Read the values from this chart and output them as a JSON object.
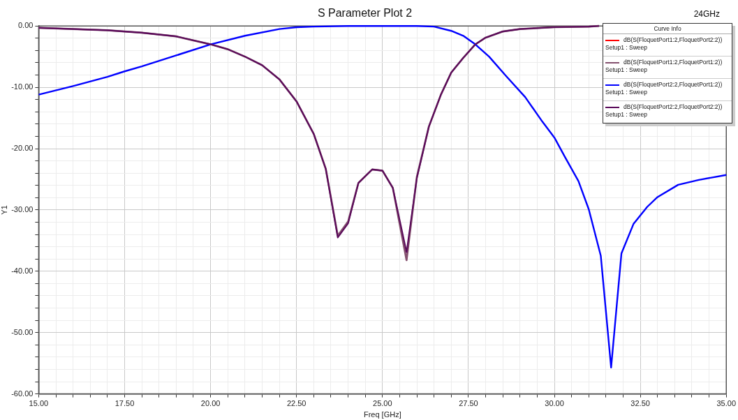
{
  "chart_data": {
    "type": "line",
    "title": "S Parameter Plot 2",
    "xlabel": "Freq [GHz]",
    "ylabel": "Y1",
    "legend_title": "Curve Info",
    "annotations": [
      "24GHz"
    ],
    "xlim": [
      15,
      35
    ],
    "ylim": [
      -60,
      0
    ],
    "xticks": [
      {
        "value": 15,
        "label": "15.00"
      },
      {
        "value": 15.5,
        "label": null
      },
      {
        "value": 16,
        "label": null
      },
      {
        "value": 16.5,
        "label": null
      },
      {
        "value": 17,
        "label": null
      },
      {
        "value": 17.5,
        "label": "17.50"
      },
      {
        "value": 18,
        "label": null
      },
      {
        "value": 18.5,
        "label": null
      },
      {
        "value": 19,
        "label": null
      },
      {
        "value": 19.5,
        "label": null
      },
      {
        "value": 20,
        "label": "20.00"
      },
      {
        "value": 20.5,
        "label": null
      },
      {
        "value": 21,
        "label": null
      },
      {
        "value": 21.5,
        "label": null
      },
      {
        "value": 22,
        "label": null
      },
      {
        "value": 22.5,
        "label": "22.50"
      },
      {
        "value": 23,
        "label": null
      },
      {
        "value": 23.5,
        "label": null
      },
      {
        "value": 24,
        "label": null
      },
      {
        "value": 24.5,
        "label": null
      },
      {
        "value": 25,
        "label": "25.00"
      },
      {
        "value": 25.5,
        "label": null
      },
      {
        "value": 26,
        "label": null
      },
      {
        "value": 26.5,
        "label": null
      },
      {
        "value": 27,
        "label": null
      },
      {
        "value": 27.5,
        "label": "27.50"
      },
      {
        "value": 28,
        "label": null
      },
      {
        "value": 28.5,
        "label": null
      },
      {
        "value": 29,
        "label": null
      },
      {
        "value": 29.5,
        "label": null
      },
      {
        "value": 30,
        "label": "30.00"
      },
      {
        "value": 30.5,
        "label": null
      },
      {
        "value": 31,
        "label": null
      },
      {
        "value": 31.5,
        "label": null
      },
      {
        "value": 32,
        "label": null
      },
      {
        "value": 32.5,
        "label": "32.50"
      },
      {
        "value": 33,
        "label": null
      },
      {
        "value": 33.5,
        "label": null
      },
      {
        "value": 34,
        "label": null
      },
      {
        "value": 34.5,
        "label": null
      },
      {
        "value": 35,
        "label": "35.00"
      }
    ],
    "yticks": [
      {
        "value": -60,
        "label": "-60.00"
      },
      {
        "value": -58,
        "label": null
      },
      {
        "value": -56,
        "label": null
      },
      {
        "value": -54,
        "label": null
      },
      {
        "value": -52,
        "label": null
      },
      {
        "value": -50,
        "label": "-50.00"
      },
      {
        "value": -48,
        "label": null
      },
      {
        "value": -46,
        "label": null
      },
      {
        "value": -44,
        "label": null
      },
      {
        "value": -42,
        "label": null
      },
      {
        "value": -40,
        "label": "-40.00"
      },
      {
        "value": -38,
        "label": null
      },
      {
        "value": -36,
        "label": null
      },
      {
        "value": -34,
        "label": null
      },
      {
        "value": -32,
        "label": null
      },
      {
        "value": -30,
        "label": "-30.00"
      },
      {
        "value": -28,
        "label": null
      },
      {
        "value": -26,
        "label": null
      },
      {
        "value": -24,
        "label": null
      },
      {
        "value": -22,
        "label": null
      },
      {
        "value": -20,
        "label": "-20.00"
      },
      {
        "value": -18,
        "label": null
      },
      {
        "value": -16,
        "label": null
      },
      {
        "value": -14,
        "label": null
      },
      {
        "value": -12,
        "label": null
      },
      {
        "value": -10,
        "label": "-10.00"
      },
      {
        "value": -8,
        "label": null
      },
      {
        "value": -6,
        "label": null
      },
      {
        "value": -4,
        "label": null
      },
      {
        "value": -2,
        "label": null
      },
      {
        "value": 0,
        "label": "0.00"
      }
    ],
    "grid": true,
    "legend": "top right",
    "marker": "none",
    "line_style": "solid",
    "series": [
      {
        "name": "dB(S(FloquetPort1:2,FloquetPort2:2))\nSetup1 : Sweep",
        "color": "#ff0000"
      },
      {
        "name": "dB(S(FloquetPort1:2,FloquetPort1:2))\nSetup1 : Sweep",
        "color": "#84506e",
        "x": [
          15,
          16,
          17,
          17.5,
          18,
          19,
          20,
          20.5,
          21,
          21.5,
          22,
          22.5,
          23,
          23.35,
          23.7,
          24,
          24.3,
          24.7,
          25,
          25.3,
          25.7,
          26,
          26.35,
          26.7,
          27,
          27.35,
          27.7,
          28,
          28.5,
          29,
          30,
          31,
          31.3
        ],
        "values": [
          -0.3,
          -0.5,
          -0.7,
          -0.9,
          -1.1,
          -1.7,
          -3.0,
          -3.8,
          -5.0,
          -6.4,
          -8.7,
          -12.3,
          -17.6,
          -23.3,
          -34.2,
          -31.9,
          -25.6,
          -23.4,
          -23.6,
          -26.4,
          -38.2,
          -24.6,
          -16.4,
          -11.2,
          -7.6,
          -5.2,
          -3.0,
          -1.9,
          -0.9,
          -0.5,
          -0.2,
          -0.1,
          0
        ]
      },
      {
        "name": "dB(S(FloquetPort2:2,FloquetPort1:2))\nSetup1 : Sweep",
        "color": "#0000ff",
        "x": [
          15,
          16,
          17,
          17.5,
          18,
          19,
          20,
          21,
          22,
          22.5,
          23,
          24,
          25,
          26,
          26.5,
          27,
          27.35,
          27.7,
          28.1,
          28.6,
          29.15,
          29.65,
          30,
          30.3,
          30.7,
          31,
          31.35,
          31.65,
          31.95,
          32.3,
          32.7,
          33,
          33.6,
          34.2,
          35
        ],
        "values": [
          -11.2,
          -9.8,
          -8.3,
          -7.4,
          -6.6,
          -4.8,
          -3.0,
          -1.6,
          -0.5,
          -0.2,
          -0.1,
          0,
          0,
          0,
          -0.1,
          -0.8,
          -1.6,
          -3.0,
          -5.0,
          -8.2,
          -11.6,
          -15.6,
          -18.2,
          -21.3,
          -25.3,
          -29.9,
          -37.5,
          -55.7,
          -37.1,
          -32.3,
          -29.5,
          -27.9,
          -25.9,
          -25.1,
          -24.3
        ]
      },
      {
        "name": "dB(S(FloquetPort2:2,FloquetPort2:2))\nSetup1 : Sweep",
        "color": "#5a0a5a",
        "x": [
          15,
          16,
          17,
          17.5,
          18,
          19,
          20,
          20.5,
          21,
          21.5,
          22,
          22.5,
          23,
          23.35,
          23.7,
          24,
          24.3,
          24.7,
          25,
          25.3,
          25.7,
          26,
          26.35,
          26.7,
          27,
          27.35,
          27.7,
          28,
          28.5,
          29,
          30,
          31,
          31.3
        ],
        "values": [
          -0.3,
          -0.5,
          -0.7,
          -0.9,
          -1.1,
          -1.7,
          -3.0,
          -3.8,
          -5.0,
          -6.4,
          -8.7,
          -12.3,
          -17.6,
          -23.3,
          -34.5,
          -32.2,
          -25.6,
          -23.4,
          -23.6,
          -26.4,
          -36.9,
          -24.8,
          -16.4,
          -11.2,
          -7.6,
          -5.2,
          -3.0,
          -1.9,
          -0.9,
          -0.5,
          -0.2,
          -0.1,
          0
        ]
      }
    ]
  }
}
